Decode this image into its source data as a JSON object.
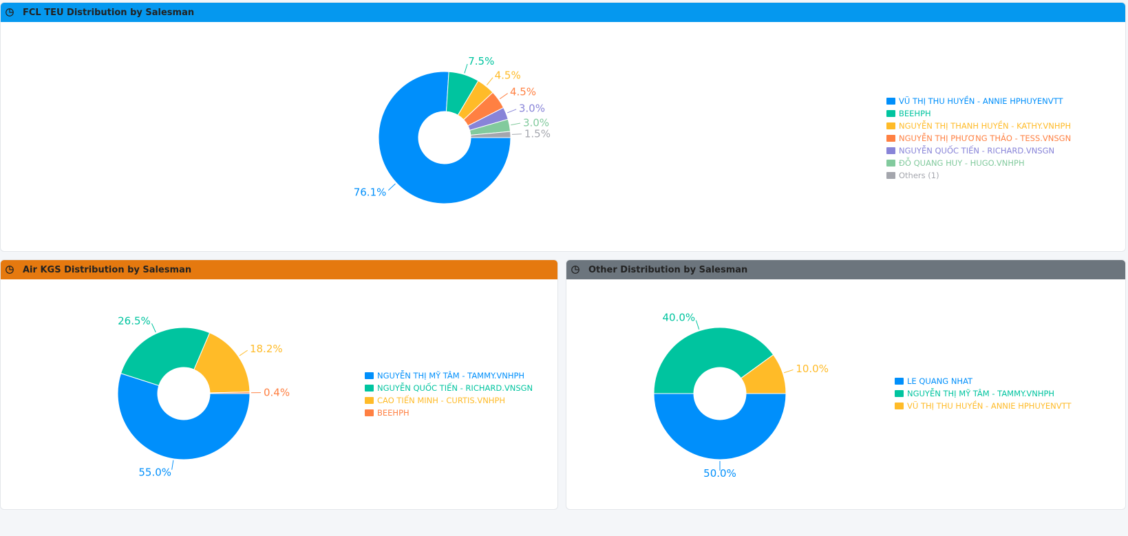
{
  "panels": [
    {
      "id": "fcl",
      "title": "FCL TEU Distribution by Salesman",
      "header_color": "#0598ef",
      "icon": "pie-chart-icon",
      "chart_data": {
        "type": "pie",
        "title": "FCL TEU Distribution by Salesman",
        "categories": [
          "VŨ THỊ THU HUYỀN - ANNIE HPHUYENVTT",
          "BEEHPH",
          "NGUYỄN THỊ THANH HUYỀN - KATHY.VNHPH",
          "NGUYỄN THỊ PHƯƠNG THẢO - TESS.VNSGN",
          "NGUYỄN QUỐC TIẾN - RICHARD.VNSGN",
          "ĐỖ QUANG HUY - HUGO.VNHPH",
          "Others (1)"
        ],
        "values": [
          76.1,
          7.5,
          4.5,
          4.5,
          3.0,
          3.0,
          1.5
        ],
        "labels": [
          "76.1%",
          "7.5%",
          "4.5%",
          "4.5%",
          "3.0%",
          "3.0%",
          "1.5%"
        ],
        "colors": [
          "#008ffb",
          "#00c49f",
          "#ffbb28",
          "#ff8042",
          "#8884d8",
          "#82ca9d",
          "#a4a6ad"
        ],
        "legend_position": "right"
      }
    },
    {
      "id": "air",
      "title": "Air KGS Distribution by Salesman",
      "header_color": "#e5790f",
      "icon": "pie-chart-icon",
      "chart_data": {
        "type": "pie",
        "title": "Air KGS Distribution by Salesman",
        "categories": [
          "NGUYỄN THỊ MỸ TÂM - TAMMY.VNHPH",
          "NGUYỄN QUỐC TIẾN - RICHARD.VNSGN",
          "CAO TIẾN MINH - CURTIS.VNHPH",
          "BEEHPH"
        ],
        "values": [
          55.0,
          26.5,
          18.2,
          0.4
        ],
        "labels": [
          "55.0%",
          "26.5%",
          "18.2%",
          "0.4%"
        ],
        "colors": [
          "#008ffb",
          "#00c49f",
          "#ffbb28",
          "#ff8042"
        ],
        "legend_position": "right"
      }
    },
    {
      "id": "other",
      "title": "Other Distribution by Salesman",
      "header_color": "#6c757d",
      "icon": "pie-chart-icon",
      "chart_data": {
        "type": "pie",
        "title": "Other Distribution by Salesman",
        "categories": [
          "LE QUANG NHAT",
          "NGUYỄN THỊ MỸ TÂM - TAMMY.VNHPH",
          "VŨ THỊ THU HUYỀN - ANNIE HPHUYENVTT"
        ],
        "values": [
          50.0,
          40.0,
          10.0
        ],
        "labels": [
          "50.0%",
          "40.0%",
          "10.0%"
        ],
        "colors": [
          "#008ffb",
          "#00c49f",
          "#ffbb28"
        ],
        "legend_position": "right"
      }
    }
  ]
}
